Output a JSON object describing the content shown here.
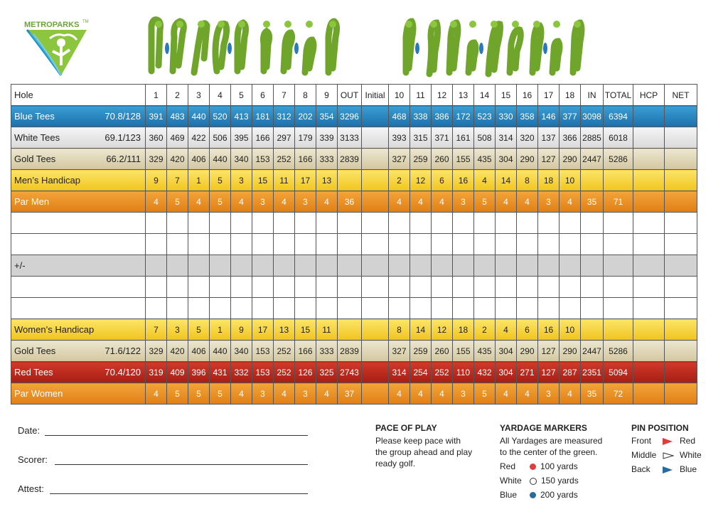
{
  "logo": {
    "text": "METROPARKS",
    "tm": "TM"
  },
  "colors": {
    "blue": "#1b6fab",
    "white": "#e6e6e6",
    "gold": "#d3c79f",
    "handicap": "#f1c41d",
    "par": "#e07f15",
    "red": "#a71d14",
    "grass": "#6fa52a"
  },
  "header": {
    "hole": "Hole",
    "front": [
      "1",
      "2",
      "3",
      "4",
      "5",
      "6",
      "7",
      "8",
      "9"
    ],
    "out": "OUT",
    "initial": "Initial",
    "back": [
      "10",
      "11",
      "12",
      "13",
      "14",
      "15",
      "16",
      "17",
      "18"
    ],
    "in": "IN",
    "total": "TOTAL",
    "hcp": "HCP",
    "net": "NET"
  },
  "rows": [
    {
      "cls": "blue",
      "name": "Blue Tees",
      "rating": "70.8/128",
      "front": [
        "391",
        "483",
        "440",
        "520",
        "413",
        "181",
        "312",
        "202",
        "354"
      ],
      "out": "3296",
      "back": [
        "468",
        "338",
        "386",
        "172",
        "523",
        "330",
        "358",
        "146",
        "377"
      ],
      "in": "3098",
      "total": "6394"
    },
    {
      "cls": "white",
      "name": "White Tees",
      "rating": "69.1/123",
      "front": [
        "360",
        "469",
        "422",
        "506",
        "395",
        "166",
        "297",
        "179",
        "339"
      ],
      "out": "3133",
      "back": [
        "393",
        "315",
        "371",
        "161",
        "508",
        "314",
        "320",
        "137",
        "366"
      ],
      "in": "2885",
      "total": "6018"
    },
    {
      "cls": "gold",
      "name": "Gold Tees",
      "rating": "66.2/111",
      "front": [
        "329",
        "420",
        "406",
        "440",
        "340",
        "153",
        "252",
        "166",
        "333"
      ],
      "out": "2839",
      "back": [
        "327",
        "259",
        "260",
        "155",
        "435",
        "304",
        "290",
        "127",
        "290"
      ],
      "in": "2447",
      "total": "5286"
    },
    {
      "cls": "hcp",
      "name": "Men’s Handicap",
      "rating": "",
      "front": [
        "9",
        "7",
        "1",
        "5",
        "3",
        "15",
        "11",
        "17",
        "13"
      ],
      "out": "",
      "back": [
        "2",
        "12",
        "6",
        "16",
        "4",
        "14",
        "8",
        "18",
        "10"
      ],
      "in": "",
      "total": ""
    },
    {
      "cls": "par",
      "name": "Par Men",
      "rating": "",
      "front": [
        "4",
        "5",
        "4",
        "5",
        "4",
        "3",
        "4",
        "3",
        "4"
      ],
      "out": "36",
      "back": [
        "4",
        "4",
        "4",
        "3",
        "5",
        "4",
        "4",
        "3",
        "4"
      ],
      "in": "35",
      "total": "71"
    },
    {
      "cls": "blank",
      "name": "",
      "rating": "",
      "front": [
        "",
        "",
        "",
        "",
        "",
        "",
        "",
        "",
        ""
      ],
      "out": "",
      "back": [
        "",
        "",
        "",
        "",
        "",
        "",
        "",
        "",
        ""
      ],
      "in": "",
      "total": ""
    },
    {
      "cls": "blank",
      "name": "",
      "rating": "",
      "front": [
        "",
        "",
        "",
        "",
        "",
        "",
        "",
        "",
        ""
      ],
      "out": "",
      "back": [
        "",
        "",
        "",
        "",
        "",
        "",
        "",
        "",
        ""
      ],
      "in": "",
      "total": ""
    },
    {
      "cls": "pm",
      "name": "+/-",
      "rating": "",
      "front": [
        "",
        "",
        "",
        "",
        "",
        "",
        "",
        "",
        ""
      ],
      "out": "",
      "back": [
        "",
        "",
        "",
        "",
        "",
        "",
        "",
        "",
        ""
      ],
      "in": "",
      "total": ""
    },
    {
      "cls": "blank",
      "name": "",
      "rating": "",
      "front": [
        "",
        "",
        "",
        "",
        "",
        "",
        "",
        "",
        ""
      ],
      "out": "",
      "back": [
        "",
        "",
        "",
        "",
        "",
        "",
        "",
        "",
        ""
      ],
      "in": "",
      "total": ""
    },
    {
      "cls": "blank",
      "name": "",
      "rating": "",
      "front": [
        "",
        "",
        "",
        "",
        "",
        "",
        "",
        "",
        ""
      ],
      "out": "",
      "back": [
        "",
        "",
        "",
        "",
        "",
        "",
        "",
        "",
        ""
      ],
      "in": "",
      "total": ""
    },
    {
      "cls": "hcp",
      "name": "Women’s Handicap",
      "rating": "",
      "front": [
        "7",
        "3",
        "5",
        "1",
        "9",
        "17",
        "13",
        "15",
        "11"
      ],
      "out": "",
      "back": [
        "8",
        "14",
        "12",
        "18",
        "2",
        "4",
        "6",
        "16",
        "10"
      ],
      "in": "",
      "total": ""
    },
    {
      "cls": "gold",
      "name": "Gold Tees",
      "rating": "71.6/122",
      "front": [
        "329",
        "420",
        "406",
        "440",
        "340",
        "153",
        "252",
        "166",
        "333"
      ],
      "out": "2839",
      "back": [
        "327",
        "259",
        "260",
        "155",
        "435",
        "304",
        "290",
        "127",
        "290"
      ],
      "in": "2447",
      "total": "5286"
    },
    {
      "cls": "red",
      "name": "Red Tees",
      "rating": "70.4/120",
      "front": [
        "319",
        "409",
        "396",
        "431",
        "332",
        "153",
        "252",
        "126",
        "325"
      ],
      "out": "2743",
      "back": [
        "314",
        "254",
        "252",
        "110",
        "432",
        "304",
        "271",
        "127",
        "287"
      ],
      "in": "2351",
      "total": "5094"
    },
    {
      "cls": "par",
      "name": "Par Women",
      "rating": "",
      "front": [
        "4",
        "5",
        "5",
        "5",
        "4",
        "3",
        "4",
        "3",
        "4"
      ],
      "out": "37",
      "back": [
        "4",
        "4",
        "4",
        "3",
        "5",
        "4",
        "4",
        "3",
        "4"
      ],
      "in": "35",
      "total": "72"
    }
  ],
  "footer": {
    "date": "Date:",
    "scorer": "Scorer:",
    "attest": "Attest:"
  },
  "pace": {
    "title": "PACE OF PLAY",
    "line1": "Please keep pace with",
    "line2": "the group ahead and play",
    "line3": "ready golf."
  },
  "yardage": {
    "title": "YARDAGE MARKERS",
    "line1": "All Yardages are measured",
    "line2": "to the center of the green.",
    "markers": [
      {
        "color": "Red",
        "dot": "#e23b3b",
        "label": "100 yards"
      },
      {
        "color": "White",
        "dot": "#ffffff",
        "label": "150 yards"
      },
      {
        "color": "Blue",
        "dot": "#2a6aa3",
        "label": "200 yards"
      }
    ]
  },
  "pin": {
    "title": "PIN POSITION",
    "items": [
      {
        "pos": "Front",
        "flag": "#e23b3b",
        "color": "Red"
      },
      {
        "pos": "Middle",
        "flag": "#ffffff",
        "color": "White"
      },
      {
        "pos": "Back",
        "flag": "#2a6aa3",
        "color": "Blue"
      }
    ]
  }
}
